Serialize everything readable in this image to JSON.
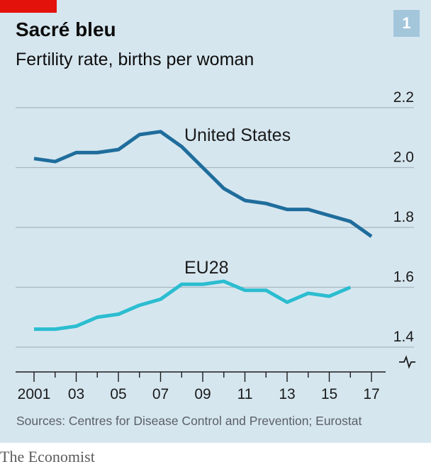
{
  "header": {
    "title": "Sacré bleu",
    "subtitle": "Fertility rate, births per woman",
    "chart_number": "1"
  },
  "footer": {
    "source": "Sources: Centres for Disease Control and Prevention; Eurostat",
    "brand": "The Economist"
  },
  "colors": {
    "background": "#d6e6ef",
    "us_line": "#1f6d9c",
    "eu_line": "#2bbdd0",
    "accent": "#e3120b"
  },
  "chart_data": {
    "type": "line",
    "title": "Sacré bleu",
    "subtitle": "Fertility rate, births per woman",
    "xlabel": "",
    "ylabel": "Fertility rate, births per woman",
    "x": [
      2001,
      2002,
      2003,
      2004,
      2005,
      2006,
      2007,
      2008,
      2009,
      2010,
      2011,
      2012,
      2013,
      2014,
      2015,
      2016,
      2017
    ],
    "x_tick_values": [
      2001,
      2003,
      2005,
      2007,
      2009,
      2011,
      2013,
      2015,
      2017
    ],
    "x_tick_labels": [
      "2001",
      "03",
      "05",
      "07",
      "09",
      "11",
      "13",
      "15",
      "17"
    ],
    "y_ticks": [
      1.4,
      1.6,
      1.8,
      2.0,
      2.2
    ],
    "y_tick_labels": [
      "1.4",
      "1.6",
      "1.8",
      "2.0",
      "2.2"
    ],
    "ylim": [
      1.3,
      2.2
    ],
    "series": [
      {
        "name": "United States",
        "label": "United States",
        "x": [
          2001,
          2002,
          2003,
          2004,
          2005,
          2006,
          2007,
          2008,
          2009,
          2010,
          2011,
          2012,
          2013,
          2014,
          2015,
          2016,
          2017
        ],
        "values": [
          2.03,
          2.02,
          2.05,
          2.05,
          2.06,
          2.11,
          2.12,
          2.07,
          2.0,
          1.93,
          1.89,
          1.88,
          1.86,
          1.86,
          1.84,
          1.82,
          1.77
        ]
      },
      {
        "name": "EU28",
        "label": "EU28",
        "x": [
          2001,
          2002,
          2003,
          2004,
          2005,
          2006,
          2007,
          2008,
          2009,
          2010,
          2011,
          2012,
          2013,
          2014,
          2015,
          2016
        ],
        "values": [
          1.46,
          1.46,
          1.47,
          1.5,
          1.51,
          1.54,
          1.56,
          1.61,
          1.61,
          1.62,
          1.59,
          1.59,
          1.55,
          1.58,
          1.57,
          1.6
        ]
      }
    ]
  }
}
